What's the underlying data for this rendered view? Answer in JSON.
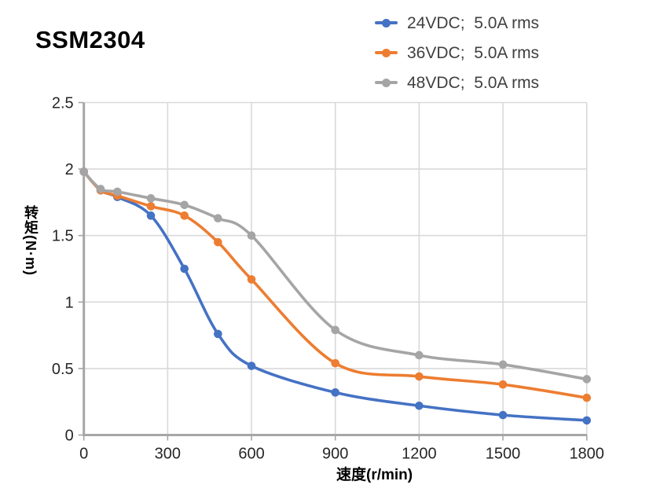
{
  "chart_data": {
    "type": "line",
    "title": "SSM2304",
    "xlabel": "速度(r/min)",
    "ylabel": "转矩(N·m)",
    "x": [
      0,
      60,
      120,
      240,
      360,
      480,
      600,
      900,
      1200,
      1500,
      1800
    ],
    "series": [
      {
        "name": "24VDC;  5.0A rms",
        "color": "#4472C4",
        "values": [
          1.98,
          1.84,
          1.79,
          1.65,
          1.25,
          0.76,
          0.52,
          0.32,
          0.22,
          0.15,
          0.11
        ]
      },
      {
        "name": "36VDC;  5.0A rms",
        "color": "#ED7D31",
        "values": [
          1.98,
          1.84,
          1.8,
          1.72,
          1.65,
          1.45,
          1.17,
          0.54,
          0.44,
          0.38,
          0.28
        ]
      },
      {
        "name": "48VDC;  5.0A rms",
        "color": "#A5A5A5",
        "values": [
          1.98,
          1.85,
          1.83,
          1.78,
          1.73,
          1.63,
          1.5,
          0.79,
          0.6,
          0.53,
          0.42
        ]
      }
    ],
    "xlim": [
      0,
      1800
    ],
    "ylim": [
      0,
      2.5
    ],
    "xticks": [
      0,
      300,
      600,
      900,
      1200,
      1500,
      1800
    ],
    "yticks": [
      0,
      0.5,
      1,
      1.5,
      2,
      2.5
    ],
    "grid": true,
    "legend_position": "top-right",
    "line_smoothing": true,
    "colors": {
      "grid": "#D9D9D9",
      "axis": "#A6A6A6",
      "tick_text": "#262626",
      "legend_text": "#404040",
      "title_text": "#000000",
      "background": "#FFFFFF"
    }
  }
}
